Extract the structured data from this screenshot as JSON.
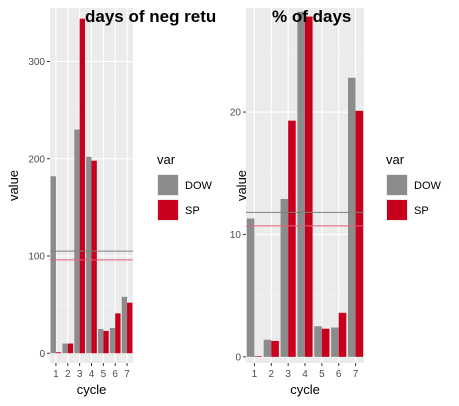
{
  "colors": {
    "panel_bg": "#ebebeb",
    "grid_major": "#ffffff",
    "grid_minor": "#f2f2f2",
    "tick_text": "#4d4d4d",
    "tick_mark": "#333333",
    "DOW": "#8c8c8c",
    "SP": "#c8001e",
    "DOW_line": "#7f7f7f",
    "SP_line": "#e0607a"
  },
  "chart_data": [
    {
      "type": "bar",
      "title": "days of neg retu",
      "xlabel": "cycle",
      "ylabel": "value",
      "categories": [
        "1",
        "2",
        "3",
        "4",
        "5",
        "6",
        "7"
      ],
      "ylim": [
        -10,
        355
      ],
      "yticks": [
        0,
        100,
        200,
        300
      ],
      "series": [
        {
          "name": "DOW",
          "values": [
            182,
            10,
            230,
            202,
            25,
            26,
            58
          ]
        },
        {
          "name": "SP",
          "values": [
            1,
            10,
            344,
            198,
            23,
            41,
            52
          ]
        }
      ],
      "hlines": [
        {
          "series": "DOW",
          "value": 105
        },
        {
          "series": "SP",
          "value": 96
        }
      ],
      "legend": {
        "title": "var",
        "entries": [
          "DOW",
          "SP"
        ],
        "position": "right"
      },
      "grid": true
    },
    {
      "type": "bar",
      "title": "% of days",
      "xlabel": "cycle",
      "ylabel": "value",
      "categories": [
        "1",
        "2",
        "3",
        "4",
        "5",
        "6",
        "7"
      ],
      "ylim": [
        -0.5,
        28.5
      ],
      "yticks": [
        0,
        10,
        20
      ],
      "series": [
        {
          "name": "DOW",
          "values": [
            11.3,
            1.4,
            12.9,
            28.2,
            2.5,
            2.4,
            22.8
          ]
        },
        {
          "name": "SP",
          "values": [
            0.05,
            1.3,
            19.3,
            27.8,
            2.3,
            3.6,
            20.1
          ]
        }
      ],
      "hlines": [
        {
          "series": "DOW",
          "value": 11.8
        },
        {
          "series": "SP",
          "value": 10.7
        }
      ],
      "legend": {
        "title": "var",
        "entries": [
          "DOW",
          "SP"
        ],
        "position": "right"
      },
      "grid": true
    }
  ]
}
